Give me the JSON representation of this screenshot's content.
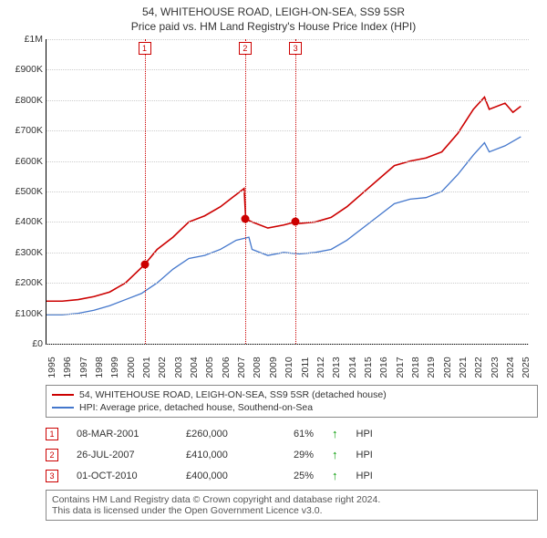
{
  "title_line1": "54, WHITEHOUSE ROAD, LEIGH-ON-SEA, SS9 5SR",
  "title_line2": "Price paid vs. HM Land Registry's House Price Index (HPI)",
  "chart": {
    "type": "line",
    "ylim": [
      0,
      1000000
    ],
    "ytick_step": 100000,
    "y_labels": [
      "£0",
      "£100K",
      "£200K",
      "£300K",
      "£400K",
      "£500K",
      "£600K",
      "£700K",
      "£800K",
      "£900K",
      "£1M"
    ],
    "xlim": [
      1995,
      2025.5
    ],
    "x_labels": [
      "1995",
      "1996",
      "1997",
      "1998",
      "1999",
      "2000",
      "2001",
      "2002",
      "2003",
      "2004",
      "2005",
      "2006",
      "2007",
      "2008",
      "2009",
      "2010",
      "2011",
      "2012",
      "2013",
      "2014",
      "2015",
      "2016",
      "2017",
      "2018",
      "2019",
      "2020",
      "2021",
      "2022",
      "2023",
      "2024",
      "2025"
    ],
    "grid_color": "#cccccc",
    "background_color": "#ffffff",
    "series": [
      {
        "name": "price_paid",
        "color": "#cc0000",
        "line_width": 1.6,
        "points": [
          [
            1995,
            140000
          ],
          [
            1996,
            140000
          ],
          [
            1997,
            145000
          ],
          [
            1998,
            155000
          ],
          [
            1999,
            170000
          ],
          [
            2000,
            200000
          ],
          [
            2001.2,
            260000
          ],
          [
            2002,
            310000
          ],
          [
            2003,
            350000
          ],
          [
            2004,
            400000
          ],
          [
            2005,
            420000
          ],
          [
            2006,
            450000
          ],
          [
            2007,
            490000
          ],
          [
            2007.5,
            510000
          ],
          [
            2007.6,
            410000
          ],
          [
            2008,
            400000
          ],
          [
            2009,
            380000
          ],
          [
            2010,
            390000
          ],
          [
            2010.75,
            400000
          ],
          [
            2011,
            395000
          ],
          [
            2012,
            400000
          ],
          [
            2013,
            415000
          ],
          [
            2014,
            450000
          ],
          [
            2015,
            495000
          ],
          [
            2016,
            540000
          ],
          [
            2017,
            585000
          ],
          [
            2018,
            600000
          ],
          [
            2019,
            610000
          ],
          [
            2020,
            630000
          ],
          [
            2021,
            690000
          ],
          [
            2022,
            770000
          ],
          [
            2022.7,
            810000
          ],
          [
            2023,
            770000
          ],
          [
            2024,
            790000
          ],
          [
            2024.5,
            760000
          ],
          [
            2025,
            780000
          ]
        ]
      },
      {
        "name": "hpi",
        "color": "#4477cc",
        "line_width": 1.3,
        "points": [
          [
            1995,
            95000
          ],
          [
            1996,
            95000
          ],
          [
            1997,
            100000
          ],
          [
            1998,
            110000
          ],
          [
            1999,
            125000
          ],
          [
            2000,
            145000
          ],
          [
            2001,
            165000
          ],
          [
            2002,
            200000
          ],
          [
            2003,
            245000
          ],
          [
            2004,
            280000
          ],
          [
            2005,
            290000
          ],
          [
            2006,
            310000
          ],
          [
            2007,
            340000
          ],
          [
            2007.8,
            350000
          ],
          [
            2008,
            310000
          ],
          [
            2009,
            290000
          ],
          [
            2010,
            300000
          ],
          [
            2011,
            295000
          ],
          [
            2012,
            300000
          ],
          [
            2013,
            310000
          ],
          [
            2014,
            340000
          ],
          [
            2015,
            380000
          ],
          [
            2016,
            420000
          ],
          [
            2017,
            460000
          ],
          [
            2018,
            475000
          ],
          [
            2019,
            480000
          ],
          [
            2020,
            500000
          ],
          [
            2021,
            555000
          ],
          [
            2022,
            620000
          ],
          [
            2022.7,
            660000
          ],
          [
            2023,
            630000
          ],
          [
            2024,
            650000
          ],
          [
            2025,
            680000
          ]
        ]
      }
    ],
    "event_lines": [
      {
        "num": "1",
        "x": 2001.2,
        "y": 260000,
        "color": "#cc0000"
      },
      {
        "num": "2",
        "x": 2007.56,
        "y": 410000,
        "color": "#cc0000"
      },
      {
        "num": "3",
        "x": 2010.75,
        "y": 400000,
        "color": "#cc0000"
      }
    ]
  },
  "legend": {
    "items": [
      {
        "color": "#cc0000",
        "label": "54, WHITEHOUSE ROAD, LEIGH-ON-SEA, SS9 5SR (detached house)"
      },
      {
        "color": "#4477cc",
        "label": "HPI: Average price, detached house, Southend-on-Sea"
      }
    ]
  },
  "sales": [
    {
      "num": "1",
      "date": "08-MAR-2001",
      "price": "£260,000",
      "pct": "61%",
      "arrow": "↑",
      "suffix": "HPI"
    },
    {
      "num": "2",
      "date": "26-JUL-2007",
      "price": "£410,000",
      "pct": "29%",
      "arrow": "↑",
      "suffix": "HPI"
    },
    {
      "num": "3",
      "date": "01-OCT-2010",
      "price": "£400,000",
      "pct": "25%",
      "arrow": "↑",
      "suffix": "HPI"
    }
  ],
  "footer_line1": "Contains HM Land Registry data © Crown copyright and database right 2024.",
  "footer_line2": "This data is licensed under the Open Government Licence v3.0."
}
